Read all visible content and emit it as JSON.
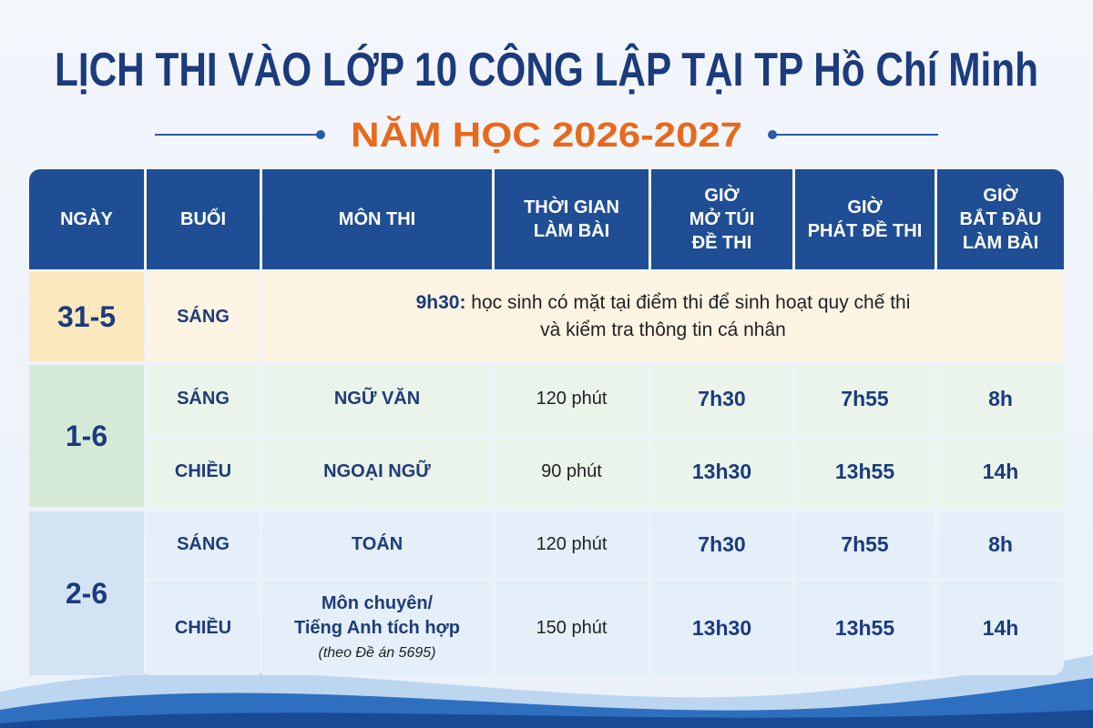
{
  "header": {
    "title": "LỊCH THI VÀO LỚP 10 CÔNG LẬP TẠI TP Hồ Chí Minh",
    "subtitle": "NĂM HỌC 2026-2027"
  },
  "table": {
    "columns": [
      [
        "NGÀY"
      ],
      [
        "BUỔI"
      ],
      [
        "MÔN THI"
      ],
      [
        "THỜI GIAN",
        "LÀM BÀI"
      ],
      [
        "GIỜ",
        "MỞ TÚI",
        "ĐỀ THI"
      ],
      [
        "GIỜ",
        "PHÁT ĐỀ THI"
      ],
      [
        "GIỜ",
        "BẮT ĐẦU",
        "LÀM BÀI"
      ]
    ],
    "days": [
      {
        "date": "31-5",
        "sessions": [
          {
            "session": "SÁNG",
            "notice": {
              "time": "9h30:",
              "lines": [
                "học sinh có mặt tại điểm thi để sinh hoạt quy chế thi",
                "và kiểm tra thông tin cá nhân"
              ]
            }
          }
        ]
      },
      {
        "date": "1-6",
        "sessions": [
          {
            "session": "SÁNG",
            "subject": [
              "NGỮ VĂN"
            ],
            "duration": "120 phút",
            "open": "7h30",
            "distribute": "7h55",
            "start": "8h"
          },
          {
            "session": "CHIỀU",
            "subject": [
              "NGOẠI NGỮ"
            ],
            "duration": "90 phút",
            "open": "13h30",
            "distribute": "13h55",
            "start": "14h"
          }
        ]
      },
      {
        "date": "2-6",
        "sessions": [
          {
            "session": "SÁNG",
            "subject": [
              "TOÁN"
            ],
            "duration": "120 phút",
            "open": "7h30",
            "distribute": "7h55",
            "start": "8h"
          },
          {
            "session": "CHIỀU",
            "subject": [
              "Môn chuyên/",
              "Tiếng Anh tích hợp"
            ],
            "subject_note": "(theo Đề án 5695)",
            "duration": "150 phút",
            "open": "13h30",
            "distribute": "13h55",
            "start": "14h"
          }
        ]
      }
    ]
  }
}
